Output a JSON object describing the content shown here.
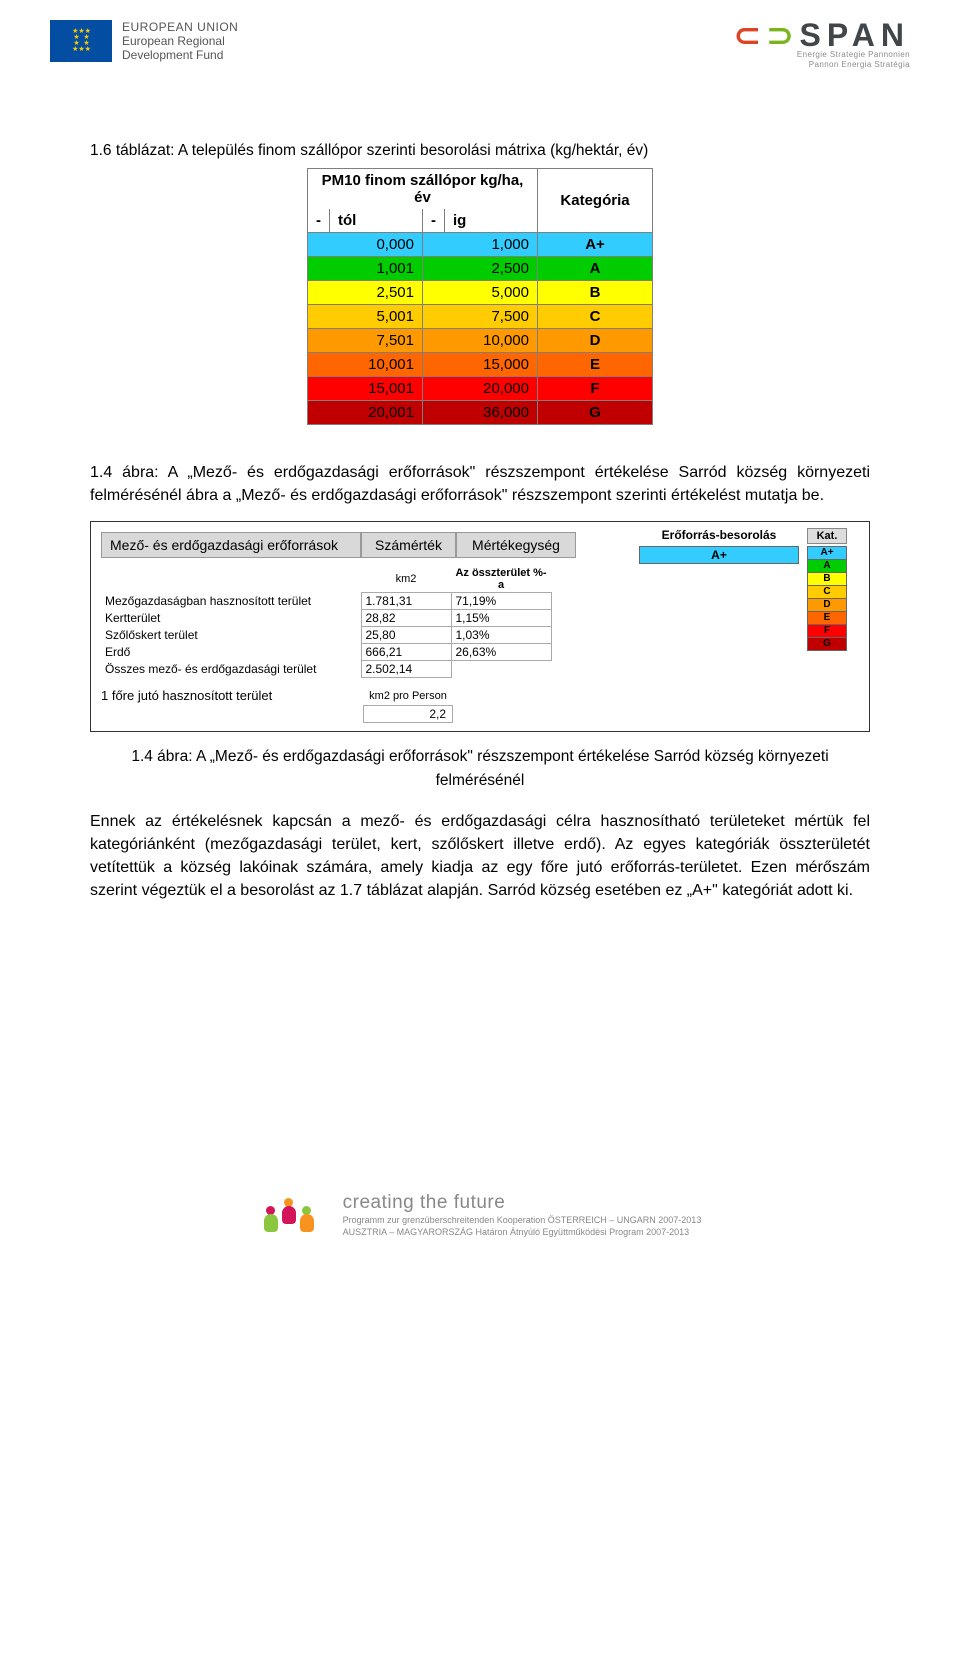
{
  "header": {
    "eu_line1": "EUROPEAN UNION",
    "eu_line2": "European Regional",
    "eu_line3": "Development Fund",
    "span_sub1": "Energie Strategie Pannonien",
    "span_sub2": "Pannon Energia Stratégia"
  },
  "table1": {
    "caption": "1.6 táblázat: A település finom szállópor szerinti besorolási mátrixa (kg/hektár, év)",
    "head_merged": "PM10 finom szállópor kg/ha, év",
    "head_cat": "Kategória",
    "sub_from_dash": "-",
    "sub_from": "tól",
    "sub_to_dash": "-",
    "sub_to": "ig",
    "rows": [
      {
        "from": "0,000",
        "to": "1,000",
        "cat": "A+",
        "bg": "#33ccff"
      },
      {
        "from": "1,001",
        "to": "2,500",
        "cat": "A",
        "bg": "#00cc00"
      },
      {
        "from": "2,501",
        "to": "5,000",
        "cat": "B",
        "bg": "#ffff00"
      },
      {
        "from": "5,001",
        "to": "7,500",
        "cat": "C",
        "bg": "#ffcc00"
      },
      {
        "from": "7,501",
        "to": "10,000",
        "cat": "D",
        "bg": "#ff9900"
      },
      {
        "from": "10,001",
        "to": "15,000",
        "cat": "E",
        "bg": "#ff6600"
      },
      {
        "from": "15,001",
        "to": "20,000",
        "cat": "F",
        "bg": "#ff0000"
      },
      {
        "from": "20,001",
        "to": "36,000",
        "cat": "G",
        "bg": "#c00000"
      }
    ]
  },
  "para1": "1.4 ábra: A „Mező- és erdőgazdasági erőforrások\" részszempont értékelése Sarród község környezeti felmérésénél ábra a „Mező- és erdőgazdasági erőforrások\" részszempont szerinti értékelést mutatja be.",
  "fig": {
    "title_main": "Mező- és erdőgazdasági erőforrások",
    "title_num": "Számérték",
    "title_unit": "Mértékegység",
    "unit_label": "km2",
    "pct_label": "Az összterület %-a",
    "right_label": "Erőforrás-besorolás",
    "kat_label": "Kat.",
    "rating_value": "A+",
    "rating_bg": "#33ccff",
    "kat_cells": [
      {
        "k": "A+",
        "bg": "#33ccff"
      },
      {
        "k": "A",
        "bg": "#00cc00"
      },
      {
        "k": "B",
        "bg": "#ffff00"
      },
      {
        "k": "C",
        "bg": "#ffcc00"
      },
      {
        "k": "D",
        "bg": "#ff9900"
      },
      {
        "k": "E",
        "bg": "#ff6600"
      },
      {
        "k": "F",
        "bg": "#ff0000"
      },
      {
        "k": "G",
        "bg": "#c00000"
      }
    ],
    "rows": [
      {
        "label": "Mezőgazdaságban hasznosított terület",
        "num": "1.781,31",
        "pct": "71,19%"
      },
      {
        "label": "Kertterület",
        "num": "28,82",
        "pct": "1,15%"
      },
      {
        "label": "Szőlőskert terület",
        "num": "25,80",
        "pct": "1,03%"
      },
      {
        "label": "Erdő",
        "num": "666,21",
        "pct": "26,63%"
      },
      {
        "label": "Összes mező- és erdőgazdasági terület",
        "num": "2.502,14",
        "pct": ""
      }
    ],
    "foot_label": "1 főre jutó hasznosított terület",
    "foot_unit": "km2 pro Person",
    "foot_value": "2,2"
  },
  "caption2a": "1.4 ábra: A „Mező- és erdőgazdasági erőforrások\" részszempont értékelése Sarród község környezeti",
  "caption2b": "felmérésénél",
  "para2": "Ennek az értékelésnek kapcsán a mező- és erdőgazdasági célra hasznosítható területeket mértük fel kategóriánként (mezőgazdasági terület, kert, szőlőskert illetve erdő). Az egyes kategóriák összterületét vetítettük a község lakóinak számára, amely kiadja az egy főre jutó erőforrás-területet. Ezen mérőszám szerint végeztük el a besorolást az 1.7 táblázat alapján. Sarród község esetében ez „A+\" kategóriát adott ki.",
  "footer": {
    "l1": "creating the future",
    "l2": "Programm zur grenzüberschreitenden Kooperation ÖSTERREICH – UNGARN 2007-2013",
    "l3": "AUSZTRIA – MAGYARORSZÁG Határon Átnyúló Együttműködési Program 2007-2013"
  }
}
